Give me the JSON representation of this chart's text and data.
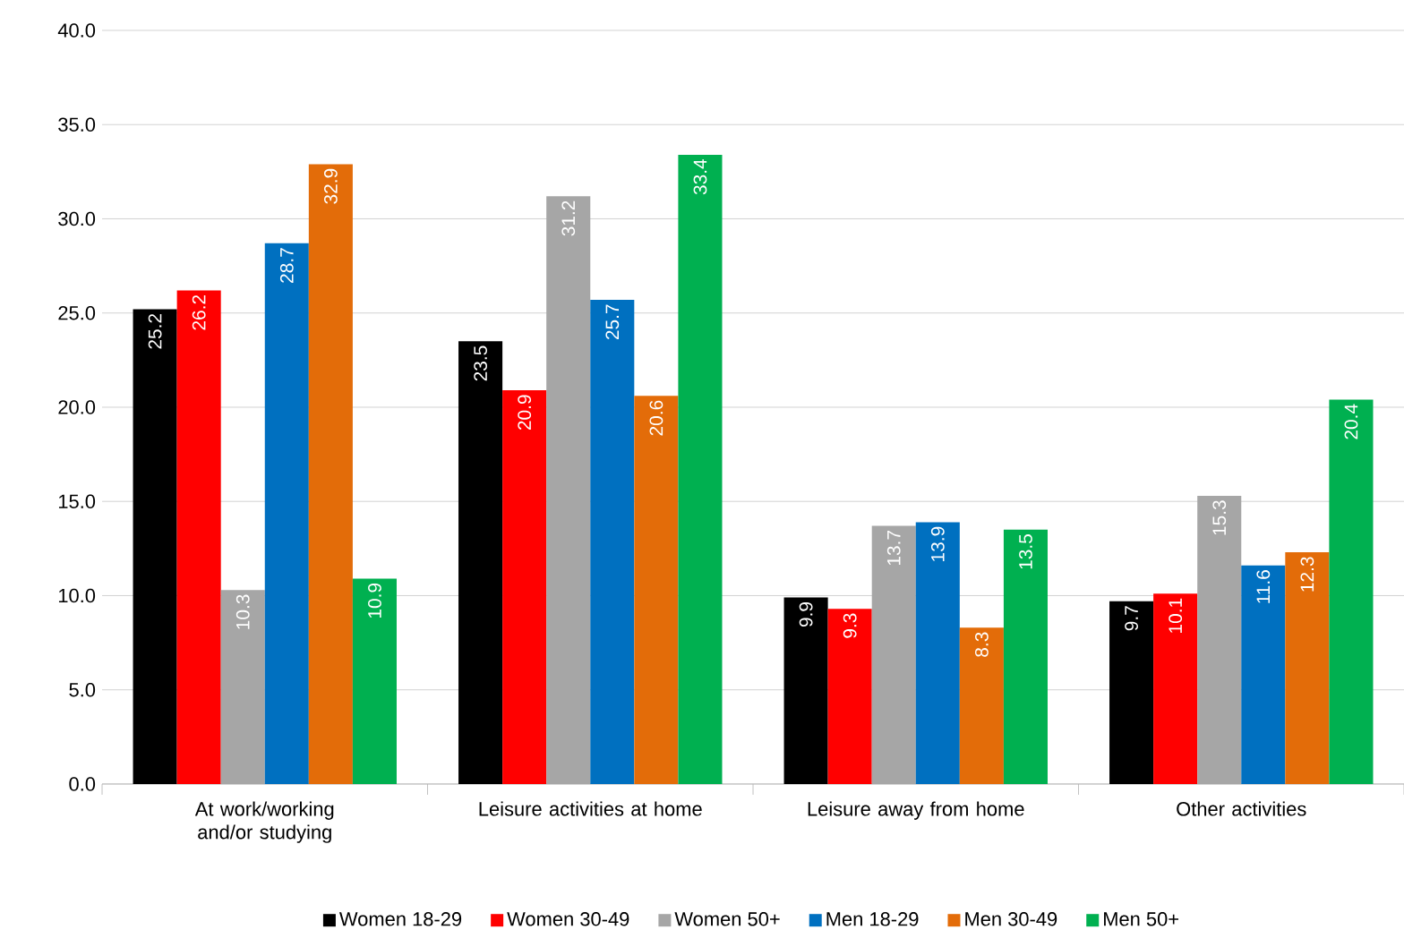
{
  "chart_data": {
    "type": "bar",
    "categories": [
      "At work/working and/or studying",
      "Leisure activities at home",
      "Leisure away from home",
      "Other activities"
    ],
    "series": [
      {
        "name": "Women 18-29",
        "color": "#000000",
        "values": [
          25.2,
          23.5,
          9.9,
          9.7
        ]
      },
      {
        "name": "Women 30-49",
        "color": "#ff0000",
        "values": [
          26.2,
          20.9,
          9.3,
          10.1
        ]
      },
      {
        "name": "Women 50+",
        "color": "#a6a6a6",
        "values": [
          10.3,
          31.2,
          13.7,
          15.3
        ]
      },
      {
        "name": "Men 18-29",
        "color": "#0070c0",
        "values": [
          28.7,
          25.7,
          13.9,
          11.6
        ]
      },
      {
        "name": "Men 30-49",
        "color": "#e36c09",
        "values": [
          32.9,
          20.6,
          8.3,
          12.3
        ]
      },
      {
        "name": "Men 50+",
        "color": "#00b050",
        "values": [
          10.9,
          33.4,
          13.5,
          20.4
        ]
      }
    ],
    "ylim": [
      0,
      40
    ],
    "yticks": [
      {
        "value": 0,
        "label": "0.0"
      },
      {
        "value": 5,
        "label": "5.0"
      },
      {
        "value": 10,
        "label": "10.0"
      },
      {
        "value": 15,
        "label": "15.0"
      },
      {
        "value": 20,
        "label": "20.0"
      },
      {
        "value": 25,
        "label": "25.0"
      },
      {
        "value": 30,
        "label": "30.0"
      },
      {
        "value": 35,
        "label": "35.0"
      },
      {
        "value": 40,
        "label": "40.0"
      }
    ],
    "grid": "y",
    "legend": "bottom",
    "data_labels": true
  }
}
